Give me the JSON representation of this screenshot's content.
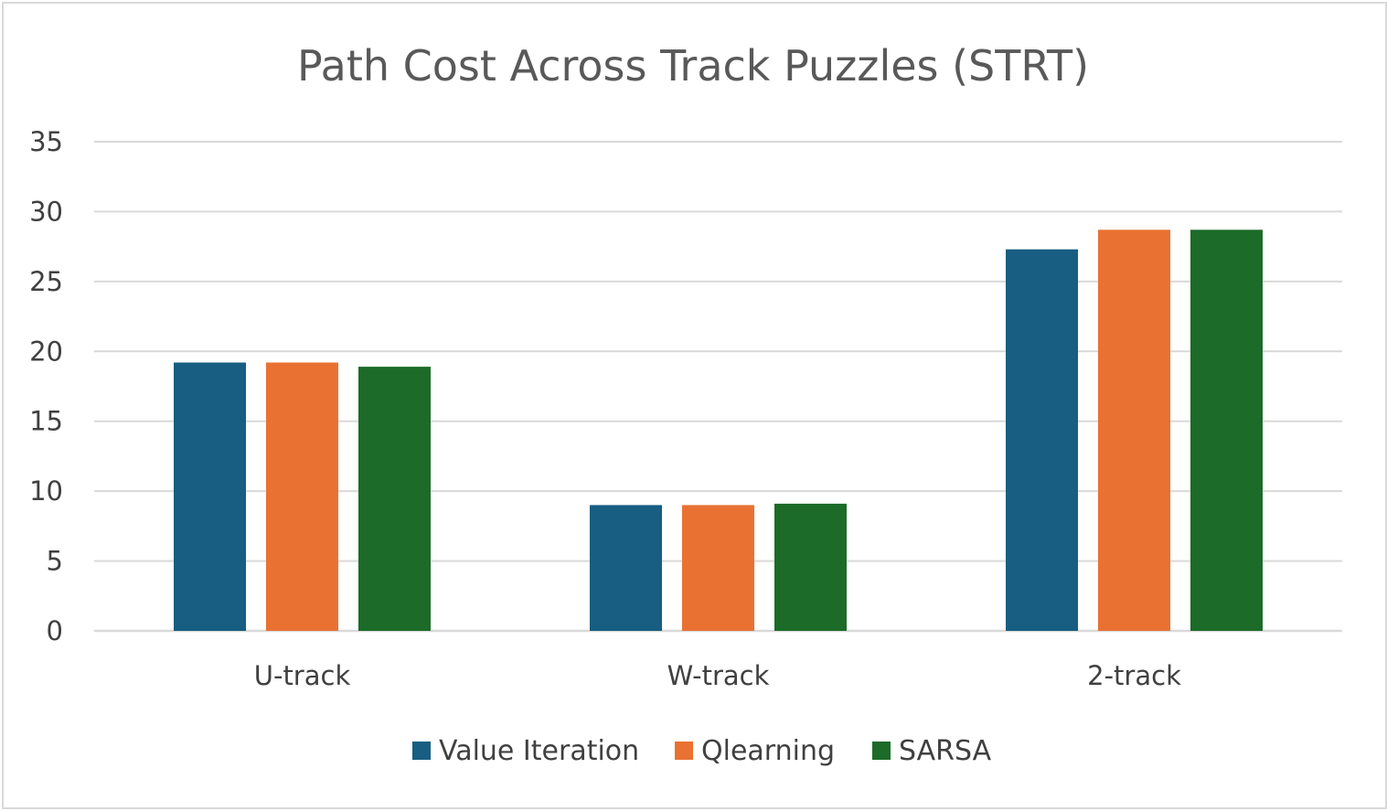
{
  "chart_data": {
    "type": "bar",
    "title": "Path Cost Across Track Puzzles (STRT)",
    "xlabel": "",
    "ylabel": "",
    "categories": [
      "U-track",
      "W-track",
      "2-track"
    ],
    "series": [
      {
        "name": "Value Iteration",
        "color": "#175e82",
        "values": [
          19.2,
          9.0,
          27.3
        ]
      },
      {
        "name": "Qlearning",
        "color": "#e97132",
        "values": [
          19.2,
          9.0,
          28.7
        ]
      },
      {
        "name": "SARSA",
        "color": "#1c6b28",
        "values": [
          18.9,
          9.1,
          28.7
        ]
      }
    ],
    "ylim": [
      0,
      35
    ],
    "yticks": [
      "0",
      "5",
      "10",
      "15",
      "20",
      "25",
      "30",
      "35"
    ],
    "grid": true,
    "legend_position": "bottom",
    "gridline_color": "#d9d9d9"
  }
}
